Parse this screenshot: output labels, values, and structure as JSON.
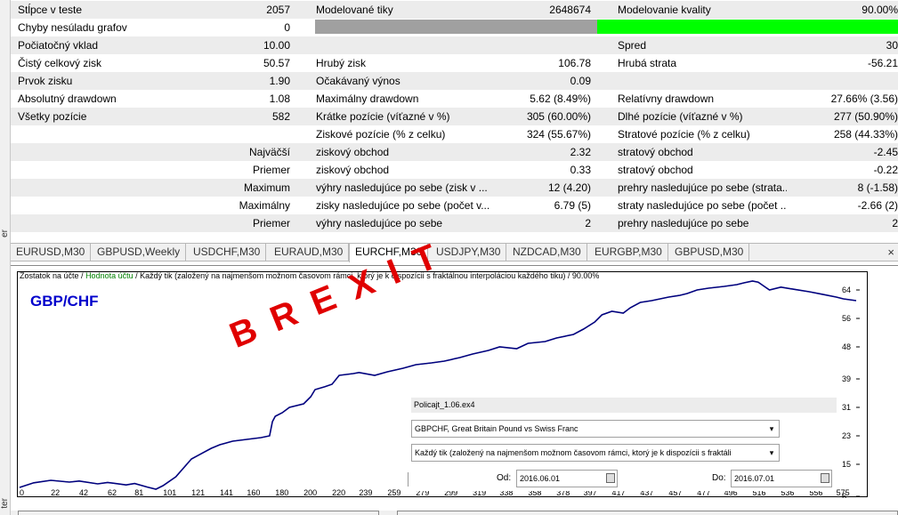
{
  "report": {
    "rows": [
      [
        "Stĺpce v teste",
        "2057",
        "Modelované tiky",
        "2648674",
        "Modelovanie kvality",
        "90.00%"
      ],
      [
        "Chyby nesúladu grafov",
        "0",
        "",
        "",
        "",
        ""
      ],
      [
        "Počiatočný vklad",
        "10.00",
        "",
        "",
        "Spred",
        "30"
      ],
      [
        "Čistý celkový zisk",
        "50.57",
        "Hrubý zisk",
        "106.78",
        "Hrubá strata",
        "-56.21"
      ],
      [
        "Prvok zisku",
        "1.90",
        "Očakávaný výnos",
        "0.09",
        "",
        ""
      ],
      [
        "Absolutný drawdown",
        "1.08",
        "Maximálny drawdown",
        "5.62 (8.49%)",
        "Relatívny drawdown",
        "27.66% (3.56)"
      ],
      [
        "Všetky pozície",
        "582",
        "Krátke pozície (víťazné v %)",
        "305 (60.00%)",
        "Dlhé pozície (víťazné v %)",
        "277 (50.90%)"
      ],
      [
        "",
        "",
        "Ziskové pozície (% z celku)",
        "324 (55.67%)",
        "Stratové pozície (% z celku)",
        "258 (44.33%)"
      ],
      [
        "",
        "Najväčší",
        "ziskový obchod",
        "2.32",
        "stratový obchod",
        "-2.45"
      ],
      [
        "",
        "Priemer",
        "ziskový obchod",
        "0.33",
        "stratový obchod",
        "-0.22"
      ],
      [
        "",
        "Maximum",
        "výhry nasledujúce po sebe (zisk v ...",
        "12 (4.20)",
        "prehry nasledujúce po sebe (strata...",
        "8 (-1.58)"
      ],
      [
        "",
        "Maximálny",
        "zisky nasledujúce po sebe (počet v...",
        "6.79 (5)",
        "straty nasledujúce po sebe (počet ...",
        "-2.66 (2)"
      ],
      [
        "",
        "Priemer",
        "výhry nasledujúce po sebe",
        "2",
        "prehry nasledujúce po sebe",
        "2"
      ]
    ],
    "quality_fill": 0.9
  },
  "left_strip": {
    "top_label": "er",
    "bottom_label": "ter"
  },
  "tabs": [
    "EURUSD,M30",
    "GBPUSD,Weekly",
    "USDCHF,M30",
    "EURAUD,M30",
    "EURCHF,M30",
    "USDJPY,M30",
    "NZDCAD,M30",
    "EURGBP,M30",
    "GBPUSD,M30"
  ],
  "active_tab": 4,
  "tab_close": "×",
  "chart_legend": {
    "balance": "Zostatok na účte",
    "sep": " / ",
    "equity": "Hodnota účtu",
    "rest": " / Každý tik (založený na najmenšom možnom časovom rámci, ktorý je k dispozícii s fraktálnou interpoláciou každého tiku) / 90.00%"
  },
  "symbol": "GBP/CHF",
  "overlay_text": "BREXIT",
  "panel": {
    "expert": "Policajt_1.06.ex4",
    "symbol": "GBPCHF, Great Britain Pound vs Swiss Franc",
    "model": "Každý tik (založený na najmenšom možnom časovom rámci, ktorý je k dispozícii s fraktáli",
    "from_label": "Od:",
    "from": "2016.06.01",
    "to_label": "Do:",
    "to": "2016.07.01",
    "combo_arrow": "▾",
    "date_arrow": "▾"
  },
  "colors": {
    "balance": "#00007f",
    "equity": "#008000",
    "quality_bar": "#00ff00",
    "overlay": "#e00000",
    "symbol": "#0000cc"
  },
  "chart_data": {
    "type": "line",
    "x_ticks": [
      "0",
      "22",
      "42",
      "62",
      "81",
      "101",
      "121",
      "141",
      "160",
      "180",
      "200",
      "220",
      "239",
      "259",
      "279",
      "299",
      "319",
      "338",
      "358",
      "378",
      "397",
      "417",
      "437",
      "457",
      "477",
      "496",
      "516",
      "536",
      "556",
      "575"
    ],
    "y_ticks": [
      "6",
      "15",
      "23",
      "31",
      "39",
      "48",
      "56",
      "64"
    ],
    "ylim": [
      6,
      68
    ],
    "xlim": [
      0,
      589
    ],
    "series": [
      {
        "x": [
          0,
          10,
          22,
          35,
          42,
          55,
          62,
          75,
          81,
          90,
          96,
          101,
          110,
          121,
          135,
          141,
          150,
          160,
          170,
          176,
          178,
          180,
          185,
          190,
          200,
          205,
          208,
          215,
          220,
          225,
          235,
          239,
          250,
          259,
          270,
          279,
          290,
          299,
          310,
          319,
          330,
          338,
          350,
          358,
          370,
          378,
          390,
          397,
          405,
          410,
          417,
          425,
          430,
          437,
          445,
          457,
          465,
          470,
          477,
          485,
          496,
          505,
          510,
          516,
          520,
          528,
          536,
          545,
          556,
          565,
          575,
          580,
          589
        ],
        "y": [
          8.5,
          9.8,
          10.5,
          10.0,
          10.3,
          9.5,
          9.9,
          9.2,
          9.6,
          8.6,
          8.0,
          9.0,
          11.5,
          16.5,
          19.5,
          20.5,
          21.5,
          22.0,
          22.5,
          23.0,
          27.0,
          28.5,
          29.5,
          31.0,
          32.0,
          34.0,
          36.0,
          36.8,
          37.5,
          40.0,
          40.5,
          40.8,
          40.0,
          41.0,
          42.0,
          43.0,
          43.5,
          44.0,
          45.0,
          46.0,
          47.0,
          48.0,
          47.5,
          49.0,
          49.5,
          50.5,
          51.5,
          53.0,
          55.0,
          57.0,
          58.0,
          57.5,
          59.0,
          60.5,
          61.0,
          62.0,
          62.5,
          63.0,
          64.0,
          64.5,
          65.0,
          65.5,
          66.0,
          66.5,
          66.2,
          64.0,
          64.8,
          64.2,
          63.5,
          62.8,
          62.0,
          61.5,
          61.0
        ]
      }
    ]
  }
}
